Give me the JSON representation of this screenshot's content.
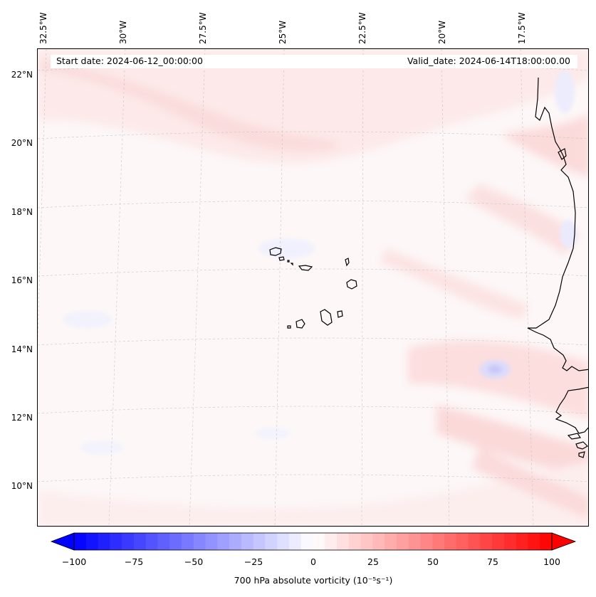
{
  "map": {
    "projection": "lambert-conformal",
    "region": "Cape Verde islands and West African coast (Mauritania/Senegal)",
    "field": "700 hPa absolute vorticity",
    "gridlines": true
  },
  "header": {
    "start_date": "Start date: 2024-06-12_00:00:00",
    "valid_date": "Valid_date: 2024-06-14T18:00:00.00"
  },
  "lon_labels": [
    "32.5°W",
    "30°W",
    "27.5°W",
    "25°W",
    "22.5°W",
    "20°W",
    "17.5°W"
  ],
  "lat_labels": [
    "22°N",
    "20°N",
    "18°N",
    "16°N",
    "14°N",
    "12°N",
    "10°N"
  ],
  "colorbar": {
    "label": "700 hPa absolute vorticity (10⁻⁵s⁻¹)",
    "min": -100,
    "max": 100,
    "step": 5,
    "extend": "both",
    "colormap": "bwr",
    "ticks": [
      "−100",
      "−75",
      "−50",
      "−25",
      "0",
      "25",
      "50",
      "75",
      "100"
    ]
  },
  "colors": {
    "negative": "#0000ff",
    "neutral": "#ffffff",
    "positive": "#ff0000",
    "coastline": "#000000"
  }
}
